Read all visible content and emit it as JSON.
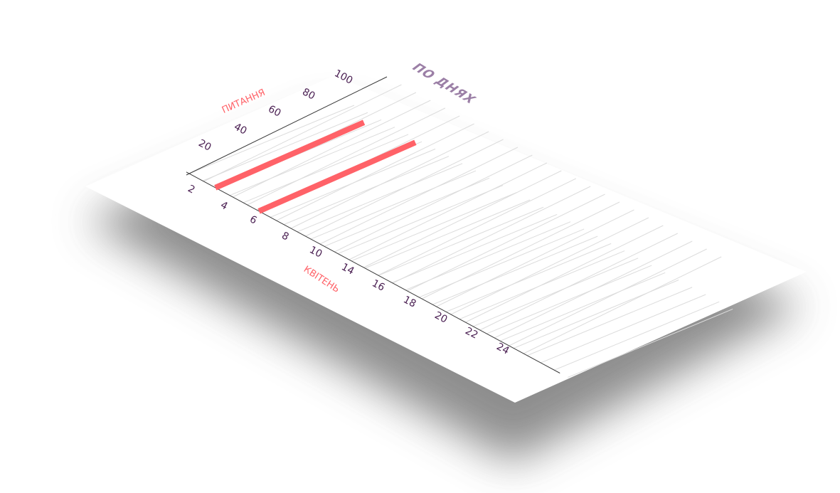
{
  "chart_data": {
    "type": "bar",
    "orientation": "horizontal",
    "title": "ПО ДНЯХ",
    "xlabel": "КВІТЕНЬ",
    "ylabel": "ПИТАННЯ",
    "x_ticks": [
      "2",
      "4",
      "6",
      "8",
      "10",
      "14",
      "16",
      "18",
      "20",
      "22",
      "24"
    ],
    "y_ticks": [
      "20",
      "40",
      "60",
      "80",
      "100"
    ],
    "xlim": [
      2,
      24
    ],
    "ylim": [
      0,
      100
    ],
    "bars": [
      {
        "x": 3,
        "value": 95
      },
      {
        "x": 6,
        "value": 100
      }
    ],
    "grid": true,
    "colors": {
      "bar": "#ff6268",
      "title": "#9b7fa6",
      "tick": "#4a1f52",
      "axis_title": "#ff6268",
      "grid": "#dcdcdc",
      "axis": "#3a3a3a"
    }
  }
}
